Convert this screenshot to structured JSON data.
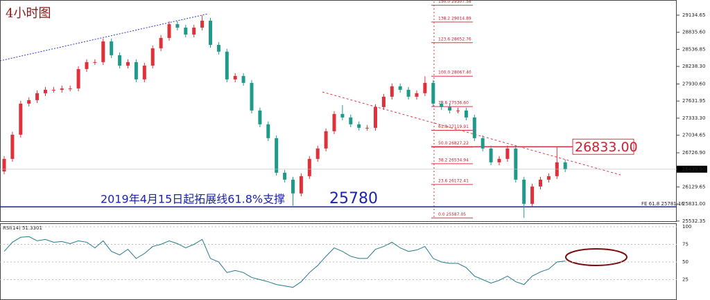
{
  "chart_data": {
    "type": "candlestick",
    "title": "4小时图",
    "up_color": "#e0303a",
    "down_color": "#1f9a8a",
    "ylim": [
      25530,
      29400
    ],
    "yticks": [
      {
        "value": 29134.65,
        "label": "29134.65"
      },
      {
        "value": 28835.6,
        "label": "28835.60"
      },
      {
        "value": 28536.85,
        "label": "28536.85"
      },
      {
        "value": 28238.3,
        "label": "28238.30"
      },
      {
        "value": 27930.6,
        "label": "27930.60"
      },
      {
        "value": 27631.95,
        "label": "27631.95"
      },
      {
        "value": 27333.3,
        "label": "27333.30"
      },
      {
        "value": 27034.65,
        "label": "27034.65"
      },
      {
        "value": 26726.9,
        "label": "26726.90"
      },
      {
        "value": 26129.65,
        "label": "26129.65"
      },
      {
        "value": 25831,
        "label": "25831.00"
      },
      {
        "value": 25532.35,
        "label": "25532.35"
      }
    ],
    "current_price": {
      "value": 26439.9,
      "label": "26439.90"
    },
    "candles": [
      [
        26400,
        26670,
        26350,
        26620
      ],
      [
        26620,
        27093,
        26570,
        27043
      ],
      [
        27043,
        27637,
        26993,
        27587
      ],
      [
        27587,
        27698,
        27537,
        27648
      ],
      [
        27648,
        27819,
        27598,
        27769
      ],
      [
        27769,
        27879,
        27719,
        27829
      ],
      [
        27829,
        27879,
        27779,
        27829
      ],
      [
        27829,
        27903,
        27779,
        27853
      ],
      [
        27853,
        27903,
        27803,
        27853
      ],
      [
        27853,
        28242,
        27803,
        28192
      ],
      [
        28192,
        28363,
        28142,
        28313
      ],
      [
        28313,
        28363,
        28263,
        28313
      ],
      [
        28313,
        28726,
        28263,
        28676
      ],
      [
        28676,
        28726,
        28384,
        28434
      ],
      [
        28434,
        28484,
        28202,
        28252
      ],
      [
        28252,
        28363,
        28202,
        28313
      ],
      [
        28313,
        28363,
        27961,
        28011
      ],
      [
        28011,
        28302,
        27961,
        28252
      ],
      [
        28252,
        28605,
        28202,
        28555
      ],
      [
        28555,
        28786,
        28505,
        28736
      ],
      [
        28736,
        29028,
        28686,
        28978
      ],
      [
        28978,
        29028,
        28867,
        28917
      ],
      [
        28917,
        28967,
        28746,
        28796
      ],
      [
        28796,
        28967,
        28746,
        28917
      ],
      [
        28917,
        29130,
        28867,
        29038
      ],
      [
        29038,
        29088,
        28565,
        28615
      ],
      [
        28615,
        28665,
        28446,
        28496
      ],
      [
        28496,
        28546,
        27961,
        28011
      ],
      [
        28011,
        28121,
        27961,
        28071
      ],
      [
        28071,
        28121,
        27900,
        27950
      ],
      [
        27950,
        28000,
        27417,
        27467
      ],
      [
        27467,
        27517,
        27175,
        27225
      ],
      [
        27225,
        27275,
        26933,
        26983
      ],
      [
        26983,
        27033,
        26328,
        26378
      ],
      [
        26378,
        26428,
        26207,
        26257
      ],
      [
        26257,
        26307,
        25800,
        26016
      ],
      [
        26016,
        26368,
        25966,
        26318
      ],
      [
        26318,
        26670,
        26268,
        26620
      ],
      [
        26620,
        26852,
        26570,
        26802
      ],
      [
        26802,
        27154,
        26752,
        27104
      ],
      [
        27104,
        27456,
        27054,
        27406
      ],
      [
        27406,
        27560,
        27295,
        27345
      ],
      [
        27345,
        27395,
        27175,
        27225
      ],
      [
        27225,
        27275,
        27114,
        27164
      ],
      [
        27164,
        27214,
        27114,
        27164
      ],
      [
        27164,
        27577,
        27114,
        27527
      ],
      [
        27527,
        27758,
        27477,
        27708
      ],
      [
        27708,
        27940,
        27658,
        27890
      ],
      [
        27890,
        27940,
        27779,
        27829
      ],
      [
        27829,
        27879,
        27658,
        27708
      ],
      [
        27708,
        27819,
        27658,
        27769
      ],
      [
        27769,
        28067,
        27719,
        27950
      ],
      [
        27950,
        28000,
        27537,
        27587
      ],
      [
        27587,
        27637,
        27477,
        27527
      ],
      [
        27527,
        27577,
        27417,
        27467
      ],
      [
        27467,
        27517,
        27417,
        27467
      ],
      [
        27467,
        27517,
        27295,
        27345
      ],
      [
        27345,
        27395,
        26933,
        26983
      ],
      [
        26983,
        27033,
        26752,
        26802
      ],
      [
        26802,
        26852,
        26510,
        26560
      ],
      [
        26560,
        26670,
        26510,
        26620
      ],
      [
        26620,
        26852,
        26570,
        26802
      ],
      [
        26802,
        26852,
        26207,
        26257
      ],
      [
        26257,
        26307,
        25587,
        25834
      ],
      [
        25834,
        26187,
        25784,
        26137
      ],
      [
        26137,
        26307,
        26087,
        26257
      ],
      [
        26257,
        26368,
        26207,
        26318
      ],
      [
        26318,
        26833,
        26268,
        26560
      ],
      [
        26560,
        26610,
        26389.9,
        26439.9
      ]
    ],
    "fib_levels": [
      {
        "value": 29307.58,
        "label": "150.0  29307.58"
      },
      {
        "value": 29014.89,
        "label": "138.2  29014.89"
      },
      {
        "value": 28652.76,
        "label": "123.6  28652.76"
      },
      {
        "value": 28067.4,
        "label": "100.0  28067.40"
      },
      {
        "value": 27536.6,
        "label": "78.6  27536.60"
      },
      {
        "value": 27119.91,
        "label": "61.8  27119.91"
      },
      {
        "value": 26827.22,
        "label": "50.0  26827.22"
      },
      {
        "value": 26534.94,
        "label": "38.2  26534.94"
      },
      {
        "value": 26172.41,
        "label": "23.6  26172.41"
      },
      {
        "value": 25587.05,
        "label": "0.0  25587.05"
      }
    ],
    "resistance": {
      "value": 26833,
      "label": "26833.00"
    },
    "support": {
      "value": 25781.16,
      "label": "FE 61.8  25781.16"
    },
    "support_note": "2019年4月15日起拓展线61.8%支撑",
    "low_note": "25780",
    "rsi": {
      "label": "RSI(14) 51.3301",
      "color": "#1f7a8a",
      "ylim": [
        0,
        100
      ],
      "yticks": [
        100,
        75,
        50,
        25
      ],
      "values": [
        65,
        78,
        85,
        86,
        80,
        82,
        78,
        79,
        76,
        80,
        78,
        70,
        80,
        65,
        60,
        68,
        55,
        62,
        72,
        75,
        80,
        76,
        70,
        75,
        82,
        55,
        50,
        35,
        38,
        35,
        28,
        25,
        22,
        18,
        16,
        14,
        22,
        35,
        45,
        58,
        70,
        65,
        58,
        55,
        55,
        68,
        72,
        78,
        70,
        65,
        67,
        72,
        55,
        50,
        48,
        48,
        42,
        30,
        25,
        20,
        24,
        30,
        22,
        18,
        30,
        36,
        40,
        50,
        51.33
      ]
    }
  }
}
